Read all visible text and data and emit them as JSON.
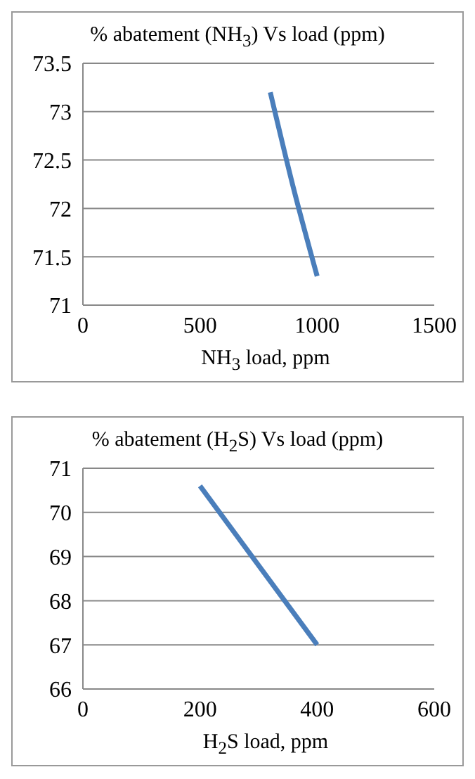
{
  "chart_data": [
    {
      "type": "line",
      "title": "% abatement (NH$_{3}$) Vs load (ppm)",
      "xlabel": "NH$_{3}$ load, ppm",
      "x": [
        800,
        900,
        1000
      ],
      "series": [
        {
          "color": "#4a7ebb",
          "values": [
            73.2,
            72.2,
            71.3
          ]
        }
      ],
      "xlim": [
        0,
        1500
      ],
      "xticks": [
        0,
        500,
        1000,
        1500
      ],
      "ylim": [
        71,
        73.5
      ],
      "yticks": [
        71,
        71.5,
        72,
        72.5,
        73,
        73.5
      ],
      "grid": "y",
      "legend": false,
      "marker": "none",
      "line_style": "solid"
    },
    {
      "type": "line",
      "title": "% abatement (H$_{2}$S) Vs load (ppm)",
      "xlabel": "H$_{2}$S load, ppm",
      "x": [
        200,
        400
      ],
      "series": [
        {
          "color": "#4a7ebb",
          "values": [
            70.6,
            67.0
          ]
        }
      ],
      "xlim": [
        0,
        600
      ],
      "xticks": [
        0,
        200,
        400,
        600
      ],
      "ylim": [
        66,
        71
      ],
      "yticks": [
        66,
        67,
        68,
        69,
        70,
        71
      ],
      "grid": "y",
      "legend": false,
      "marker": "none",
      "line_style": "solid"
    }
  ]
}
